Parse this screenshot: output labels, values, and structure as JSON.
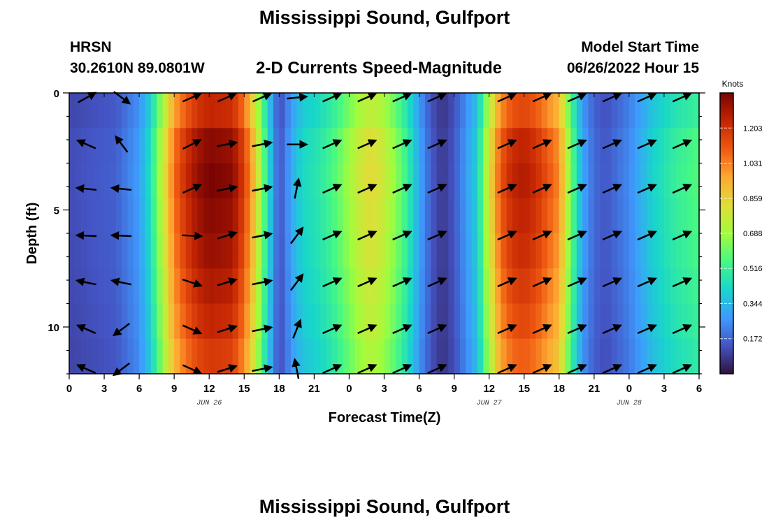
{
  "header": {
    "title": "Mississippi Sound, Gulfport",
    "station": "HRSN",
    "coords": "30.2610N  89.0801W",
    "subtitle": "2-D Currents Speed-Magnitude",
    "model_start_label": "Model Start Time",
    "model_start_value": "06/26/2022 Hour 15"
  },
  "footer": {
    "title": "Mississippi Sound, Gulfport"
  },
  "chart_data": {
    "type": "heatmap",
    "xlabel": "Forecast Time(Z)",
    "ylabel": "Depth (ft)",
    "x_tick_labels": [
      "0",
      "3",
      "6",
      "9",
      "12",
      "15",
      "18",
      "21",
      "0",
      "3",
      "6",
      "9",
      "12",
      "15",
      "18",
      "21",
      "0",
      "3",
      "6"
    ],
    "date_labels": [
      "JUN 26",
      "JUN 27",
      "JUN 28"
    ],
    "x_range_hours": [
      0,
      54
    ],
    "y_range_ft": [
      0,
      12
    ],
    "y_ticks": [
      0,
      5,
      10
    ],
    "colorbar": {
      "unit": "Knots",
      "range": [
        0.0,
        1.375
      ],
      "tick_labels": [
        "1.203",
        "1.031",
        "0.859",
        "0.688",
        "0.516",
        "0.344",
        "0.172"
      ],
      "colors": [
        "#30123b",
        "#4454c4",
        "#3e9bfe",
        "#18d6cb",
        "#46f884",
        "#a2fc3c",
        "#e1dd37",
        "#fea832",
        "#ef5911",
        "#c42503",
        "#7a0403"
      ]
    },
    "grid": false,
    "speed_profile_hours": [
      0,
      2,
      4,
      5,
      6,
      7,
      8,
      9,
      10,
      11,
      12,
      14,
      15,
      16,
      17,
      18,
      19,
      20,
      21,
      22,
      23,
      24,
      25,
      26,
      27,
      28,
      29,
      30,
      31,
      32,
      33,
      35,
      36,
      37,
      38,
      39,
      40,
      42,
      43,
      44,
      45,
      46,
      48,
      50,
      52,
      54
    ],
    "speed_profile_knots": [
      0.12,
      0.14,
      0.16,
      0.22,
      0.28,
      0.45,
      0.75,
      1.05,
      1.2,
      1.3,
      1.35,
      1.32,
      1.15,
      0.85,
      0.45,
      0.12,
      0.3,
      0.42,
      0.45,
      0.5,
      0.58,
      0.68,
      0.78,
      0.82,
      0.76,
      0.65,
      0.5,
      0.3,
      0.15,
      0.08,
      0.14,
      0.4,
      0.8,
      1.1,
      1.22,
      1.25,
      1.2,
      1.0,
      0.6,
      0.3,
      0.18,
      0.14,
      0.24,
      0.4,
      0.5,
      0.56
    ],
    "depth_factor": [
      0.92,
      1.0,
      1.02,
      1.0,
      0.98,
      0.95,
      0.92,
      0.88
    ],
    "vector_depths_ft": [
      0.2,
      2.2,
      4.1,
      6.1,
      8.1,
      10.1,
      11.8
    ],
    "vectors": [
      {
        "t": 1.5,
        "dirs": [
          [
            0.9,
            -0.5
          ],
          [
            -0.9,
            -0.4
          ],
          [
            -1,
            -0.1
          ],
          [
            -1,
            -0.05
          ],
          [
            -0.95,
            -0.2
          ],
          [
            -0.9,
            -0.4
          ],
          [
            -0.9,
            -0.4
          ]
        ]
      },
      {
        "t": 4.5,
        "dirs": [
          [
            0.8,
            0.6
          ],
          [
            -0.6,
            -0.8
          ],
          [
            -1,
            -0.1
          ],
          [
            -1,
            -0.05
          ],
          [
            -0.95,
            -0.2
          ],
          [
            -0.8,
            0.6
          ],
          [
            -0.8,
            0.6
          ]
        ]
      },
      {
        "t": 10.5,
        "dirs": [
          [
            0.9,
            -0.4
          ],
          [
            0.9,
            -0.45
          ],
          [
            0.9,
            -0.4
          ],
          [
            1,
            0.05
          ],
          [
            0.9,
            0.3
          ],
          [
            0.9,
            0.4
          ],
          [
            0.9,
            0.4
          ]
        ]
      },
      {
        "t": 13.5,
        "dirs": [
          [
            0.9,
            -0.4
          ],
          [
            1,
            -0.2
          ],
          [
            1,
            -0.2
          ],
          [
            0.95,
            -0.3
          ],
          [
            0.95,
            -0.3
          ],
          [
            0.95,
            -0.3
          ],
          [
            0.95,
            -0.3
          ]
        ]
      },
      {
        "t": 16.5,
        "dirs": [
          [
            0.9,
            -0.4
          ],
          [
            1,
            -0.2
          ],
          [
            1,
            -0.2
          ],
          [
            1,
            -0.2
          ],
          [
            1,
            -0.2
          ],
          [
            1,
            -0.2
          ],
          [
            1,
            -0.2
          ]
        ]
      },
      {
        "t": 19.5,
        "dirs": [
          [
            1,
            -0.1
          ],
          [
            1,
            0
          ],
          [
            0.2,
            -1
          ],
          [
            0.6,
            -0.8
          ],
          [
            0.6,
            -0.8
          ],
          [
            0.4,
            -1
          ],
          [
            -0.2,
            -1
          ]
        ]
      },
      {
        "t": 22.5,
        "dirs": [
          [
            0.9,
            -0.4
          ],
          [
            0.9,
            -0.4
          ],
          [
            0.9,
            -0.4
          ],
          [
            0.9,
            -0.4
          ],
          [
            0.9,
            -0.4
          ],
          [
            0.9,
            -0.4
          ],
          [
            0.9,
            -0.4
          ]
        ]
      },
      {
        "t": 25.5,
        "dirs": [
          [
            0.9,
            -0.4
          ],
          [
            0.9,
            -0.4
          ],
          [
            0.9,
            -0.4
          ],
          [
            0.9,
            -0.4
          ],
          [
            0.9,
            -0.4
          ],
          [
            0.9,
            -0.4
          ],
          [
            0.9,
            -0.4
          ]
        ]
      },
      {
        "t": 28.5,
        "dirs": [
          [
            0.9,
            -0.4
          ],
          [
            0.9,
            -0.4
          ],
          [
            0.9,
            -0.4
          ],
          [
            0.9,
            -0.4
          ],
          [
            0.9,
            -0.4
          ],
          [
            0.9,
            -0.4
          ],
          [
            0.9,
            -0.4
          ]
        ]
      },
      {
        "t": 31.5,
        "dirs": [
          [
            0.9,
            -0.4
          ],
          [
            0.9,
            -0.4
          ],
          [
            0.9,
            -0.4
          ],
          [
            0.9,
            -0.4
          ],
          [
            0.9,
            -0.4
          ],
          [
            0.9,
            -0.4
          ],
          [
            0.9,
            -0.4
          ]
        ]
      },
      {
        "t": 37.5,
        "dirs": [
          [
            0.9,
            -0.4
          ],
          [
            0.9,
            -0.4
          ],
          [
            0.9,
            -0.4
          ],
          [
            0.9,
            -0.4
          ],
          [
            0.9,
            -0.4
          ],
          [
            0.9,
            -0.4
          ],
          [
            0.9,
            -0.4
          ]
        ]
      },
      {
        "t": 40.5,
        "dirs": [
          [
            0.9,
            -0.4
          ],
          [
            0.9,
            -0.4
          ],
          [
            0.9,
            -0.4
          ],
          [
            0.9,
            -0.4
          ],
          [
            0.9,
            -0.4
          ],
          [
            0.9,
            -0.4
          ],
          [
            0.9,
            -0.4
          ]
        ]
      },
      {
        "t": 43.5,
        "dirs": [
          [
            0.9,
            -0.4
          ],
          [
            0.9,
            -0.4
          ],
          [
            0.9,
            -0.4
          ],
          [
            0.9,
            -0.4
          ],
          [
            0.9,
            -0.4
          ],
          [
            0.9,
            -0.4
          ],
          [
            0.9,
            -0.4
          ]
        ]
      },
      {
        "t": 46.5,
        "dirs": [
          [
            0.9,
            -0.4
          ],
          [
            0.9,
            -0.4
          ],
          [
            0.9,
            -0.4
          ],
          [
            0.9,
            -0.4
          ],
          [
            0.9,
            -0.4
          ],
          [
            0.9,
            -0.4
          ],
          [
            0.9,
            -0.4
          ]
        ]
      },
      {
        "t": 49.5,
        "dirs": [
          [
            0.9,
            -0.4
          ],
          [
            0.9,
            -0.4
          ],
          [
            0.9,
            -0.4
          ],
          [
            0.9,
            -0.4
          ],
          [
            0.9,
            -0.4
          ],
          [
            0.9,
            -0.4
          ],
          [
            0.9,
            -0.4
          ]
        ]
      },
      {
        "t": 52.5,
        "dirs": [
          [
            0.9,
            -0.4
          ],
          [
            0.9,
            -0.4
          ],
          [
            0.9,
            -0.4
          ],
          [
            0.9,
            -0.4
          ],
          [
            0.9,
            -0.4
          ],
          [
            0.9,
            -0.4
          ],
          [
            0.9,
            -0.4
          ]
        ]
      }
    ]
  }
}
